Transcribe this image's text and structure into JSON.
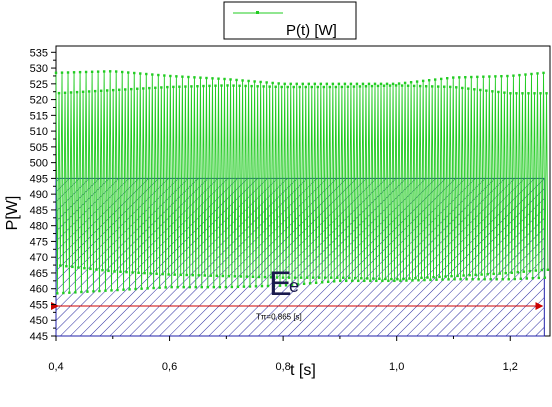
{
  "chart_data": {
    "type": "line",
    "title": "",
    "xlabel": "t [s]",
    "ylabel": "P[W]",
    "xlim": [
      0.4,
      1.27
    ],
    "ylim": [
      445,
      537
    ],
    "x_ticks": [
      0.4,
      0.6,
      0.8,
      1.0,
      1.2
    ],
    "x_tick_labels": [
      "0,4",
      "0,6",
      "0,8",
      "1,0",
      "1,2"
    ],
    "y_ticks": [
      445,
      450,
      455,
      460,
      465,
      470,
      475,
      480,
      485,
      490,
      495,
      500,
      505,
      510,
      515,
      520,
      525,
      530,
      535
    ],
    "y_tick_labels": [
      "445",
      "450",
      "455",
      "460",
      "465",
      "470",
      "475",
      "480",
      "485",
      "490",
      "495",
      "500",
      "505",
      "510",
      "515",
      "520",
      "525",
      "530",
      "535"
    ],
    "legend_position": "top",
    "series": [
      {
        "name": "P(t) [W]",
        "color": "#22cc22",
        "period_s": 0.0106,
        "envelope": {
          "t": [
            0.4,
            0.5,
            0.6,
            0.7,
            0.8,
            0.9,
            1.0,
            1.1,
            1.2,
            1.26
          ],
          "max_high": [
            528.5,
            529,
            527.5,
            526.5,
            525,
            525,
            525,
            527,
            527.5,
            528.5
          ],
          "max_low": [
            522,
            523,
            524,
            524.5,
            524,
            524,
            524.5,
            524,
            522,
            522
          ],
          "min_high": [
            467.5,
            465.5,
            464.5,
            464,
            463.5,
            463.5,
            463,
            464,
            465,
            466
          ],
          "min_low": [
            458.5,
            459.5,
            460.5,
            460.5,
            461,
            462.5,
            462.5,
            463,
            463,
            463.5
          ]
        }
      }
    ],
    "annotations": {
      "region_fill": "#2222aa",
      "region_top_y": 495,
      "region_x": [
        0.4,
        1.26
      ],
      "energy_label_main": "E",
      "energy_label_sub": "e",
      "period_label": "Tπ=0,865 [s]",
      "arrow_color": "#cc0000"
    }
  }
}
